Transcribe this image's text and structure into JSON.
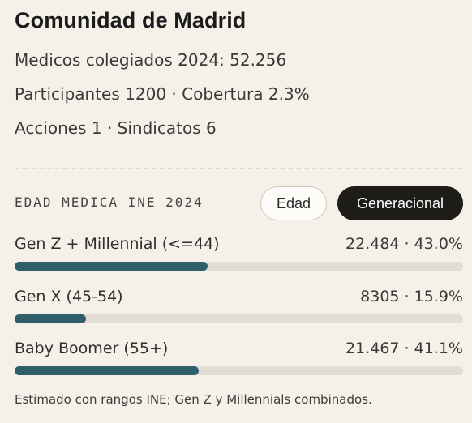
{
  "region": {
    "title": "Comunidad de Madrid",
    "stats": [
      "Medicos colegiados 2024: 52.256",
      "Participantes 1200 · Cobertura 2.3%",
      "Acciones 1 · Sindicatos 6"
    ]
  },
  "age_section": {
    "label": "EDAD MEDICA INE 2024",
    "toggles": {
      "edad": "Edad",
      "generacional": "Generacional",
      "selected": "generacional"
    },
    "rows": [
      {
        "label": "Gen Z + Millennial (<=44)",
        "value": "22.484 · 43.0%",
        "fraction": 0.43
      },
      {
        "label": "Gen X (45-54)",
        "value": "8305 · 15.9%",
        "fraction": 0.159
      },
      {
        "label": "Baby Boomer (55+)",
        "value": "21.467 · 41.1%",
        "fraction": 0.411
      }
    ],
    "footnote": "Estimado con rangos INE; Gen Z y Millennials combinados."
  },
  "colors": {
    "background": "#f5f1e8",
    "bar_fill": "#2f5e6a",
    "bar_track": "#e1ddd4",
    "toggle_active_bg": "#1d1c19"
  }
}
